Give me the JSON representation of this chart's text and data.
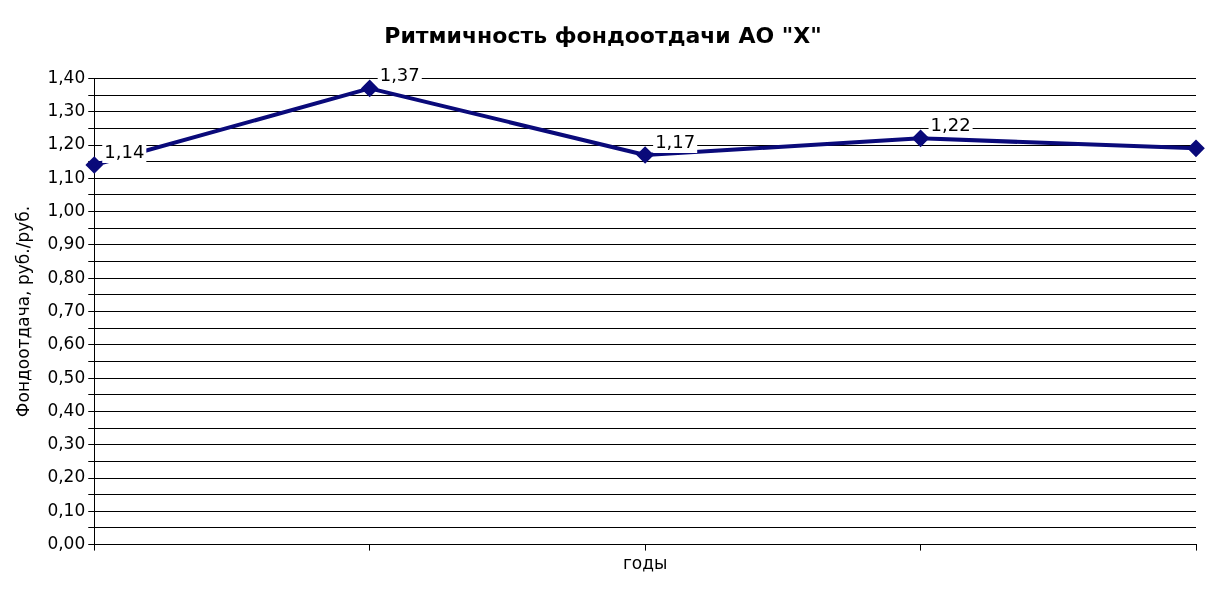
{
  "chart_data": {
    "type": "line",
    "title": "Ритмичность фондоотдачи АО \"X\"",
    "xlabel": "годы",
    "ylabel": "Фондоотдача, руб./руб.",
    "categories": [
      null,
      null,
      null,
      null,
      null
    ],
    "series": [
      {
        "color": "#0a0a7a",
        "values": [
          1.14,
          1.37,
          1.17,
          1.22,
          1.19
        ],
        "value_labels": [
          "1,14",
          "1,37",
          "1,17",
          "1,22",
          null
        ]
      }
    ],
    "ylim": [
      0,
      1.4
    ],
    "yticks": [
      {
        "value": 0,
        "label": "0,00"
      },
      {
        "value": 0.05,
        "label": null
      },
      {
        "value": 0.1,
        "label": "0,10"
      },
      {
        "value": 0.15,
        "label": null
      },
      {
        "value": 0.2,
        "label": "0,20"
      },
      {
        "value": 0.25,
        "label": null
      },
      {
        "value": 0.3,
        "label": "0,30"
      },
      {
        "value": 0.35,
        "label": null
      },
      {
        "value": 0.4,
        "label": "0,40"
      },
      {
        "value": 0.45,
        "label": null
      },
      {
        "value": 0.5,
        "label": "0,50"
      },
      {
        "value": 0.55,
        "label": null
      },
      {
        "value": 0.6,
        "label": "0,60"
      },
      {
        "value": 0.65,
        "label": null
      },
      {
        "value": 0.7,
        "label": "0,70"
      },
      {
        "value": 0.75,
        "label": null
      },
      {
        "value": 0.8,
        "label": "0,80"
      },
      {
        "value": 0.85,
        "label": null
      },
      {
        "value": 0.9,
        "label": "0,90"
      },
      {
        "value": 0.95,
        "label": null
      },
      {
        "value": 1.0,
        "label": "1,00"
      },
      {
        "value": 1.05,
        "label": null
      },
      {
        "value": 1.1,
        "label": "1,10"
      },
      {
        "value": 1.15,
        "label": null
      },
      {
        "value": 1.2,
        "label": "1,20"
      },
      {
        "value": 1.25,
        "label": null
      },
      {
        "value": 1.3,
        "label": "1,30"
      },
      {
        "value": 1.35,
        "label": null
      },
      {
        "value": 1.4,
        "label": "1,40"
      }
    ],
    "grid": "y",
    "legend": false,
    "marker": "diamond",
    "line_style": "solid",
    "tick_labels": "y"
  }
}
